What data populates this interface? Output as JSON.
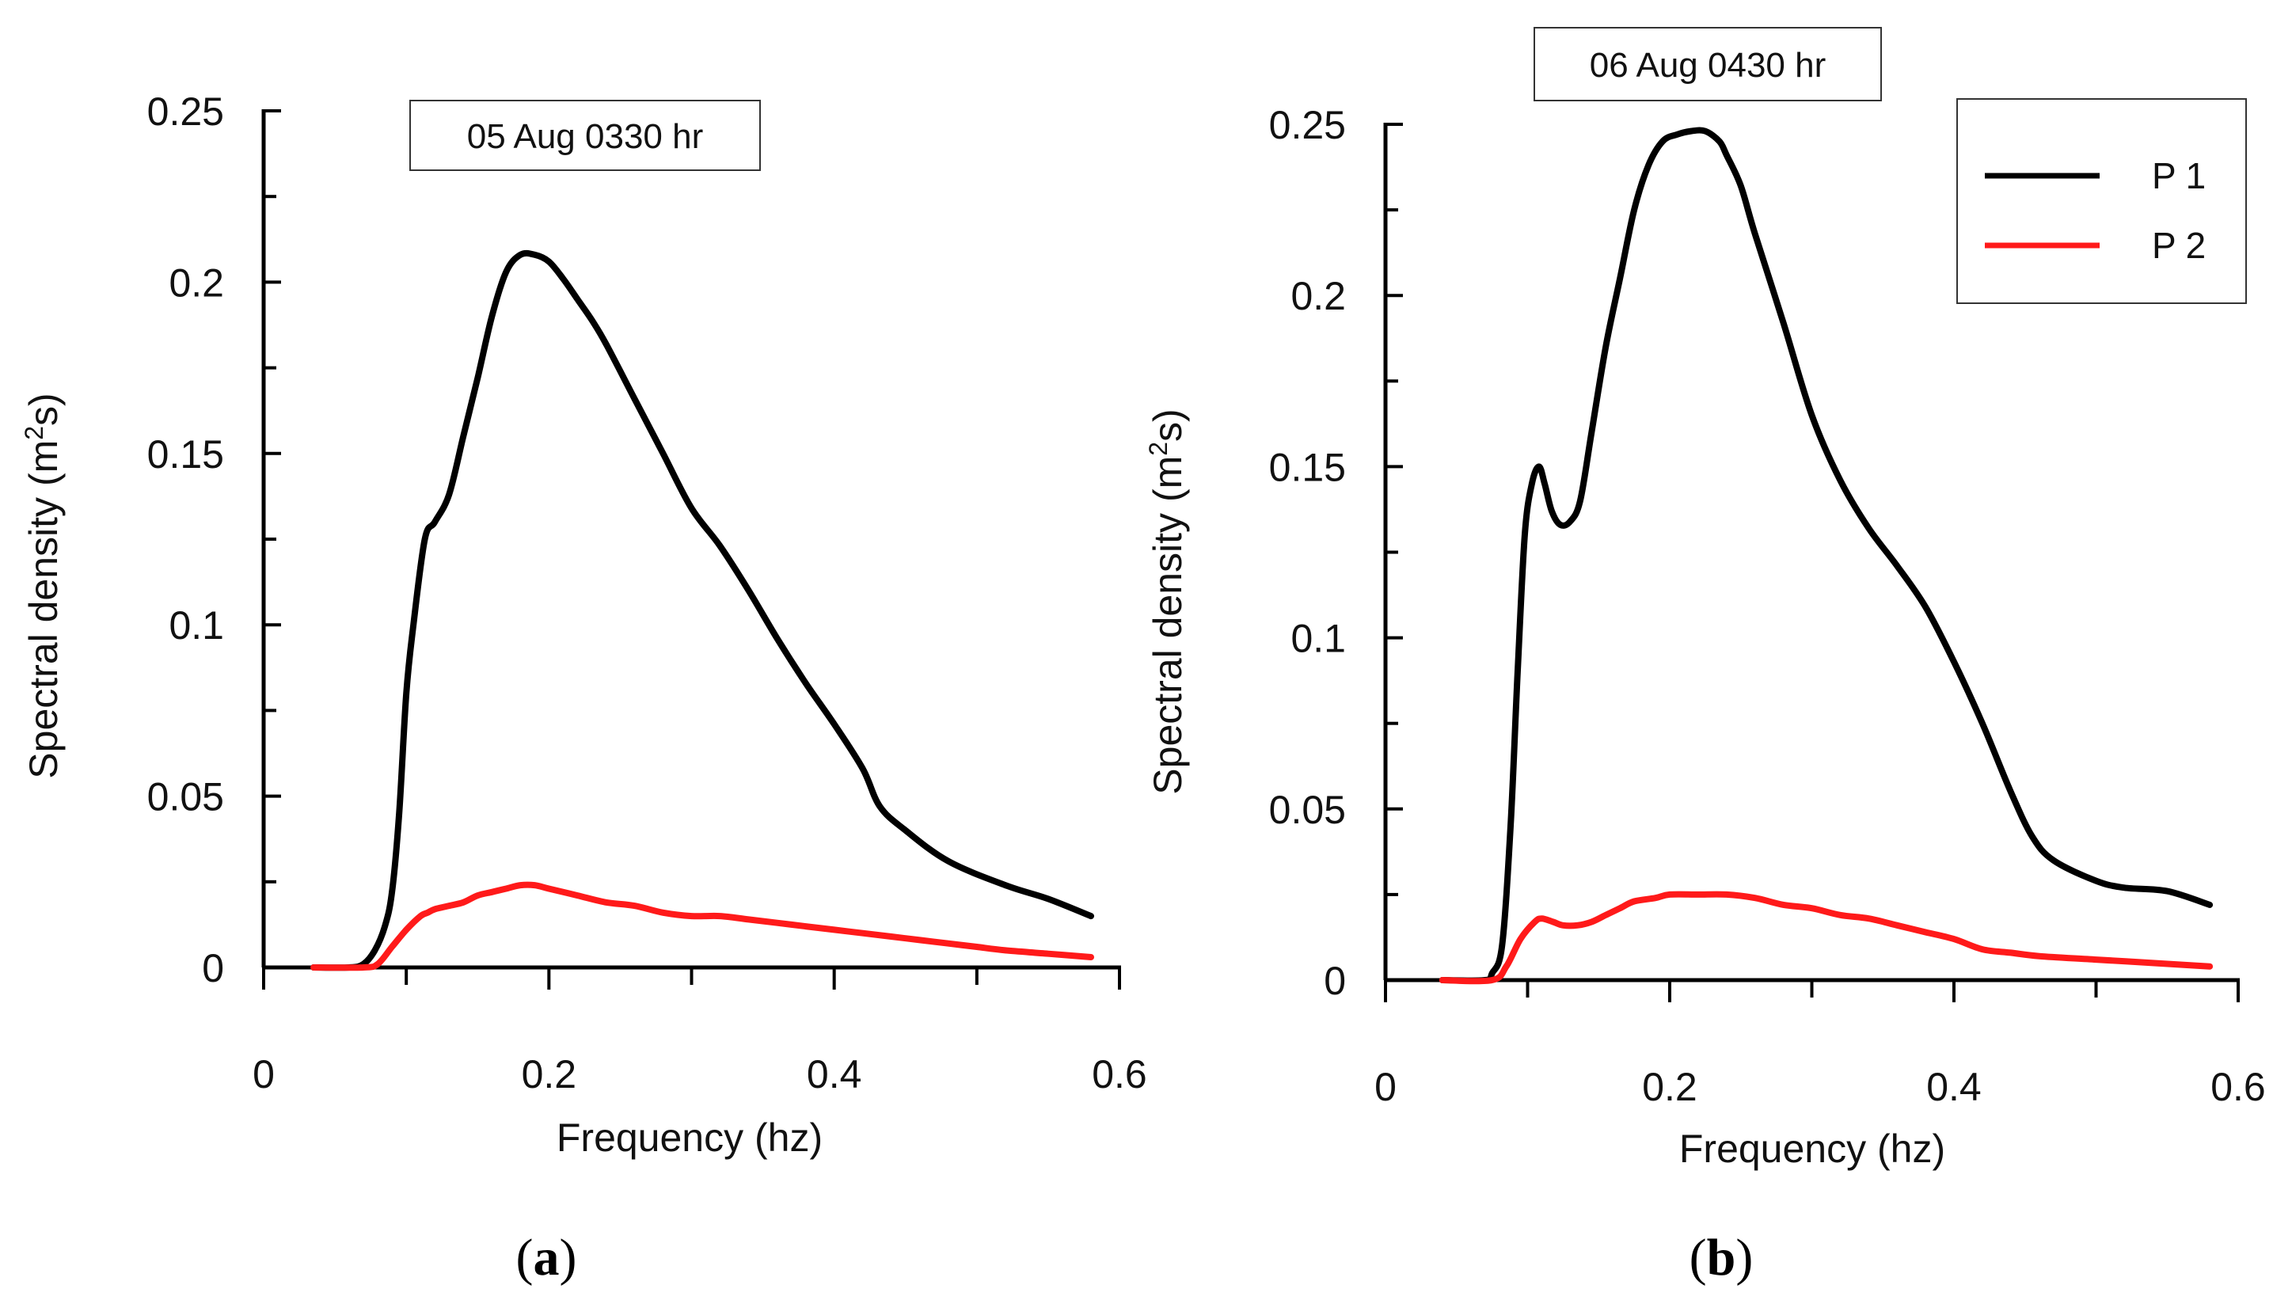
{
  "colors": {
    "P1": "#000000",
    "P2": "#ff1a1a",
    "axis": "#000000"
  },
  "chart_data": [
    {
      "type": "line",
      "panel_label": "a",
      "title": "05 Aug 0330 hr",
      "xlabel": "Frequency (hz)",
      "ylabel_pre": "Spectral density (m",
      "ylabel_sup": "2",
      "ylabel_post": "s)",
      "xlim": [
        0,
        0.6
      ],
      "ylim": [
        0,
        0.25
      ],
      "xticks": [
        0,
        0.2,
        0.4,
        0.6
      ],
      "xtick_labels": [
        "0",
        "0.2",
        "0.4",
        "0.6"
      ],
      "yticks": [
        0,
        0.05,
        0.1,
        0.15,
        0.2,
        0.25
      ],
      "ytick_labels": [
        "0",
        "0.05",
        "0.1",
        "0.15",
        "0.2",
        "0.25"
      ],
      "legend": false,
      "series": [
        {
          "name": "P 1",
          "x": [
            0.035,
            0.06,
            0.07,
            0.078,
            0.085,
            0.09,
            0.095,
            0.1,
            0.105,
            0.113,
            0.12,
            0.13,
            0.14,
            0.15,
            0.16,
            0.17,
            0.18,
            0.19,
            0.2,
            0.21,
            0.22,
            0.23,
            0.24,
            0.26,
            0.28,
            0.3,
            0.32,
            0.34,
            0.36,
            0.38,
            0.4,
            0.42,
            0.432,
            0.45,
            0.48,
            0.52,
            0.55,
            0.58
          ],
          "y": [
            0,
            0,
            0.001,
            0.005,
            0.012,
            0.022,
            0.045,
            0.08,
            0.1,
            0.125,
            0.13,
            0.138,
            0.155,
            0.172,
            0.19,
            0.203,
            0.208,
            0.208,
            0.206,
            0.201,
            0.195,
            0.189,
            0.182,
            0.166,
            0.15,
            0.134,
            0.123,
            0.11,
            0.096,
            0.083,
            0.071,
            0.058,
            0.047,
            0.04,
            0.031,
            0.024,
            0.02,
            0.015
          ]
        },
        {
          "name": "P 2",
          "x": [
            0.035,
            0.07,
            0.08,
            0.09,
            0.1,
            0.11,
            0.115,
            0.12,
            0.13,
            0.14,
            0.15,
            0.16,
            0.17,
            0.18,
            0.19,
            0.2,
            0.22,
            0.24,
            0.26,
            0.28,
            0.3,
            0.32,
            0.34,
            0.36,
            0.38,
            0.4,
            0.42,
            0.44,
            0.46,
            0.48,
            0.5,
            0.52,
            0.55,
            0.58
          ],
          "y": [
            0,
            0,
            0.001,
            0.006,
            0.011,
            0.015,
            0.016,
            0.017,
            0.018,
            0.019,
            0.021,
            0.022,
            0.023,
            0.024,
            0.024,
            0.023,
            0.021,
            0.019,
            0.018,
            0.016,
            0.015,
            0.015,
            0.014,
            0.013,
            0.012,
            0.011,
            0.01,
            0.009,
            0.008,
            0.007,
            0.006,
            0.005,
            0.004,
            0.003
          ]
        }
      ]
    },
    {
      "type": "line",
      "panel_label": "b",
      "title": "06 Aug 0430 hr",
      "xlabel": "Frequency (hz)",
      "ylabel_pre": "Spectral density (m",
      "ylabel_sup": "2",
      "ylabel_post": "s)",
      "xlim": [
        0,
        0.6
      ],
      "ylim": [
        0,
        0.25
      ],
      "xticks": [
        0,
        0.2,
        0.4,
        0.6
      ],
      "xtick_labels": [
        "0",
        "0.2",
        "0.4",
        "0.6"
      ],
      "yticks": [
        0,
        0.05,
        0.1,
        0.15,
        0.2,
        0.25
      ],
      "ytick_labels": [
        "0",
        "0.05",
        "0.1",
        "0.15",
        "0.2",
        "0.25"
      ],
      "legend": true,
      "legend_entries": [
        "P 1",
        "P 2"
      ],
      "legend_position": "top-right",
      "series": [
        {
          "name": "P 1",
          "x": [
            0.04,
            0.07,
            0.075,
            0.082,
            0.088,
            0.093,
            0.098,
            0.103,
            0.108,
            0.112,
            0.117,
            0.123,
            0.13,
            0.137,
            0.145,
            0.155,
            0.165,
            0.175,
            0.185,
            0.195,
            0.205,
            0.215,
            0.225,
            0.235,
            0.24,
            0.25,
            0.26,
            0.28,
            0.3,
            0.32,
            0.34,
            0.36,
            0.38,
            0.4,
            0.42,
            0.44,
            0.455,
            0.47,
            0.5,
            0.52,
            0.55,
            0.58
          ],
          "y": [
            0,
            0,
            0.002,
            0.01,
            0.045,
            0.09,
            0.13,
            0.145,
            0.15,
            0.145,
            0.137,
            0.133,
            0.134,
            0.14,
            0.16,
            0.185,
            0.205,
            0.225,
            0.238,
            0.245,
            0.247,
            0.248,
            0.248,
            0.245,
            0.241,
            0.232,
            0.218,
            0.192,
            0.165,
            0.146,
            0.132,
            0.121,
            0.109,
            0.093,
            0.075,
            0.055,
            0.042,
            0.035,
            0.029,
            0.027,
            0.026,
            0.022
          ]
        },
        {
          "name": "P 2",
          "x": [
            0.04,
            0.075,
            0.085,
            0.095,
            0.105,
            0.11,
            0.118,
            0.125,
            0.135,
            0.145,
            0.155,
            0.165,
            0.175,
            0.19,
            0.2,
            0.22,
            0.24,
            0.26,
            0.28,
            0.3,
            0.32,
            0.34,
            0.36,
            0.38,
            0.4,
            0.42,
            0.44,
            0.46,
            0.5,
            0.54,
            0.58
          ],
          "y": [
            0,
            0,
            0.004,
            0.012,
            0.017,
            0.018,
            0.017,
            0.016,
            0.016,
            0.017,
            0.019,
            0.021,
            0.023,
            0.024,
            0.025,
            0.025,
            0.025,
            0.024,
            0.022,
            0.021,
            0.019,
            0.018,
            0.016,
            0.014,
            0.012,
            0.009,
            0.008,
            0.007,
            0.006,
            0.005,
            0.004
          ]
        }
      ]
    }
  ]
}
